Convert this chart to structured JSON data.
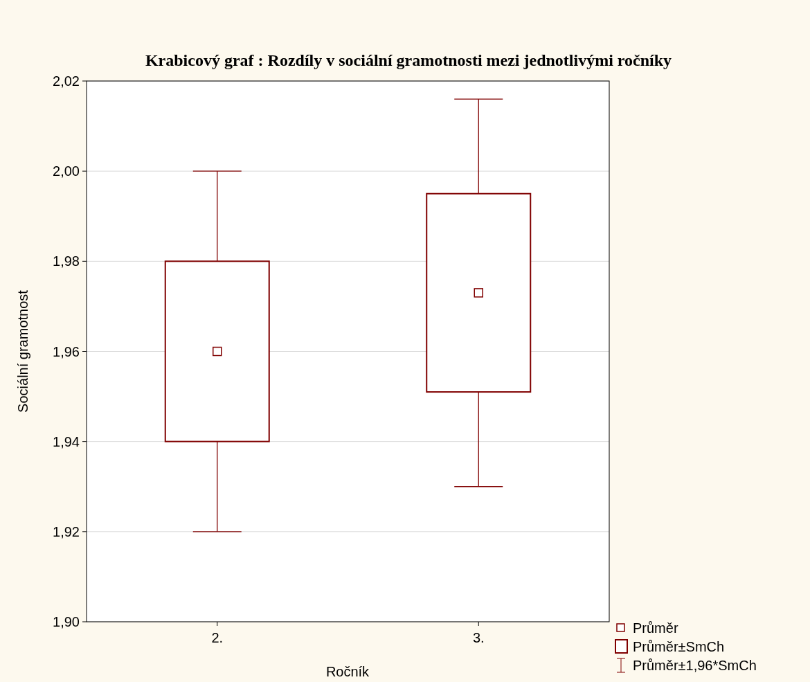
{
  "chart_data": {
    "type": "box",
    "title": "Krabicový  graf :   Rozdíly v sociální gramotnosti mezi jednotlivými ročníky",
    "xlabel": "Ročník",
    "ylabel": "Sociální gramotnost",
    "categories": [
      "2.",
      "3."
    ],
    "series": [
      {
        "color": "#800000",
        "boxes": [
          {
            "low": 1.92,
            "q1": 1.94,
            "median": 1.96,
            "q3": 1.98,
            "high": 2.0
          },
          {
            "low": 1.93,
            "q1": 1.951,
            "median": 1.973,
            "q3": 1.995,
            "high": 2.016
          }
        ]
      }
    ],
    "ylim": [
      1.9,
      2.02
    ],
    "yticks": [
      {
        "value": 1.9,
        "label": "1,90"
      },
      {
        "value": 1.92,
        "label": "1,92"
      },
      {
        "value": 1.94,
        "label": "1,94"
      },
      {
        "value": 1.96,
        "label": "1,96"
      },
      {
        "value": 1.98,
        "label": "1,98"
      },
      {
        "value": 2.0,
        "label": "2,00"
      },
      {
        "value": 2.02,
        "label": "2,02"
      }
    ],
    "grid": "y",
    "marker": "square",
    "annotations": [
      "Průměr",
      "Průměr±SmCh",
      "Průměr±1,96*SmCh"
    ]
  }
}
